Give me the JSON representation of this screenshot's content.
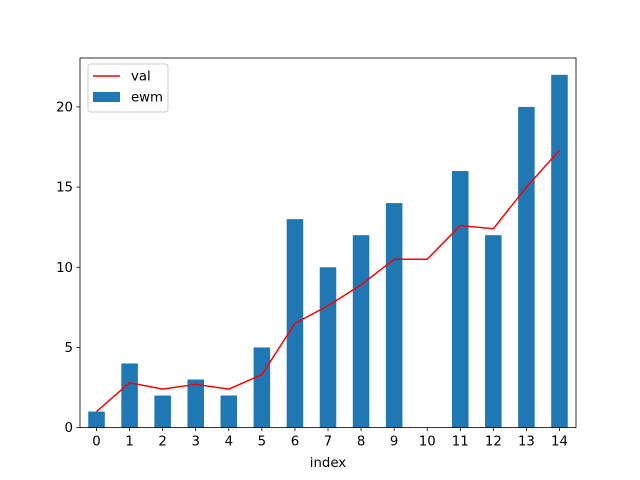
{
  "chart_data": {
    "type": "bar",
    "title": "",
    "xlabel": "index",
    "ylabel": "",
    "categories": [
      "0",
      "1",
      "2",
      "3",
      "4",
      "5",
      "6",
      "7",
      "8",
      "9",
      "10",
      "11",
      "12",
      "13",
      "14"
    ],
    "series": [
      {
        "name": "ewm",
        "type": "bar",
        "color": "#1f77b4",
        "values": [
          1,
          4,
          2,
          3,
          2,
          5,
          13,
          10,
          12,
          14,
          0,
          16,
          12,
          20,
          22
        ]
      },
      {
        "name": "val",
        "type": "line",
        "color": "#ff0000",
        "values": [
          1.0,
          2.8,
          2.4,
          2.7,
          2.4,
          3.3,
          6.5,
          7.6,
          8.9,
          10.5,
          10.5,
          12.6,
          12.4,
          15.0,
          17.3
        ]
      }
    ],
    "ylim": [
      0,
      23.05
    ],
    "yticks": [
      0,
      5,
      10,
      15,
      20
    ],
    "grid": false,
    "legend": {
      "position": "top-left",
      "order": [
        "val",
        "ewm"
      ]
    }
  }
}
